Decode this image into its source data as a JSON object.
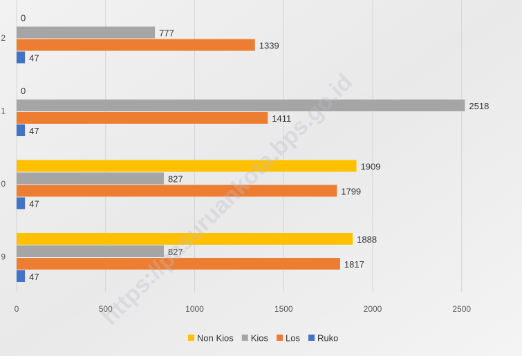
{
  "chart_data": {
    "type": "bar",
    "orientation": "horizontal",
    "categories": [
      "2",
      "1",
      "0",
      "9"
    ],
    "series": [
      {
        "name": "Non Kios",
        "color": "#ffc000",
        "values": [
          0,
          0,
          1909,
          1888
        ]
      },
      {
        "name": "Kios",
        "color": "#a5a5a5",
        "values": [
          777,
          2518,
          827,
          827
        ]
      },
      {
        "name": "Los",
        "color": "#ed7d31",
        "values": [
          1339,
          1411,
          1799,
          1817
        ]
      },
      {
        "name": "Ruko",
        "color": "#4472c4",
        "values": [
          47,
          47,
          47,
          47
        ]
      }
    ],
    "xlim": [
      0,
      2800
    ],
    "xticks": [
      0,
      500,
      1000,
      1500,
      2000,
      2500
    ],
    "grid": true,
    "legend": "bottom",
    "watermark": "https://pasuruankota.bps.go.id"
  }
}
